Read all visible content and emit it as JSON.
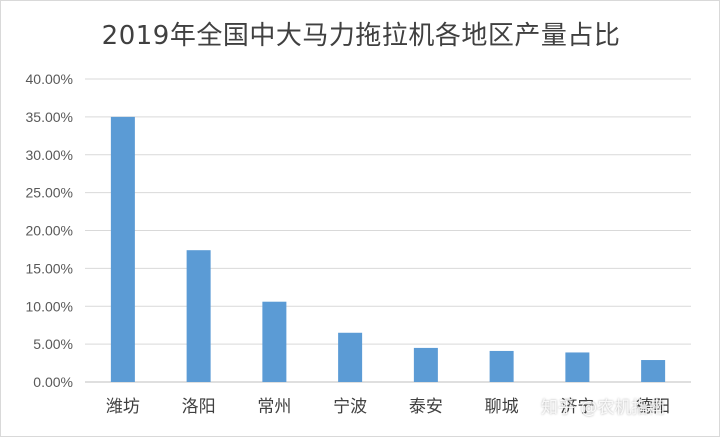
{
  "chart_data": {
    "type": "bar",
    "title": "2019年全国中大马力拖拉机各地区产量占比",
    "categories": [
      "潍坊",
      "洛阳",
      "常州",
      "宁波",
      "泰安",
      "聊城",
      "济宁",
      "德阳"
    ],
    "values": [
      35.0,
      17.4,
      10.6,
      6.5,
      4.5,
      4.1,
      3.9,
      2.9
    ],
    "ylim": [
      0,
      40
    ],
    "yticks": [
      "0.00%",
      "5.00%",
      "10.00%",
      "15.00%",
      "20.00%",
      "25.00%",
      "30.00%",
      "35.00%",
      "40.00%"
    ],
    "bar_color": "#5b9bd5",
    "grid": true,
    "legend": "none"
  },
  "watermark": {
    "text": "知乎 @农机指南"
  }
}
